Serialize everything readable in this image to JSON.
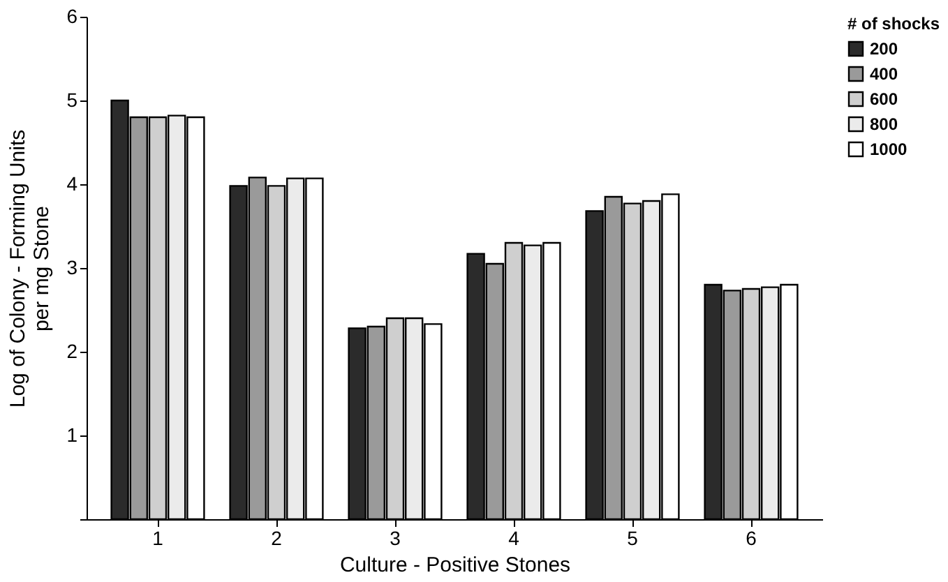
{
  "chart_data": {
    "type": "bar",
    "xlabel": "Culture - Positive Stones",
    "ylabel": "Log of Colony - Forming Units per mg Stone",
    "legend_title": "# of shocks",
    "categories": [
      "1",
      "2",
      "3",
      "4",
      "5",
      "6"
    ],
    "series": [
      {
        "name": "200",
        "color": "#2b2b2b",
        "values": [
          5.0,
          3.98,
          2.28,
          3.17,
          3.68,
          2.8
        ]
      },
      {
        "name": "400",
        "color": "#9a9a9a",
        "values": [
          4.8,
          4.08,
          2.3,
          3.05,
          3.85,
          2.73
        ]
      },
      {
        "name": "600",
        "color": "#cfcfcf",
        "values": [
          4.8,
          3.98,
          2.4,
          3.3,
          3.77,
          2.75
        ]
      },
      {
        "name": "800",
        "color": "#ebebeb",
        "values": [
          4.82,
          4.07,
          2.4,
          3.27,
          3.8,
          2.77
        ]
      },
      {
        "name": "1000",
        "color": "#ffffff",
        "values": [
          4.8,
          4.07,
          2.33,
          3.3,
          3.88,
          2.8
        ]
      }
    ],
    "ylim": [
      0,
      6
    ],
    "yticks": [
      {
        "value": 0,
        "label": null
      },
      1,
      2,
      3,
      4,
      5,
      6
    ],
    "grid": false,
    "legend": "right"
  }
}
